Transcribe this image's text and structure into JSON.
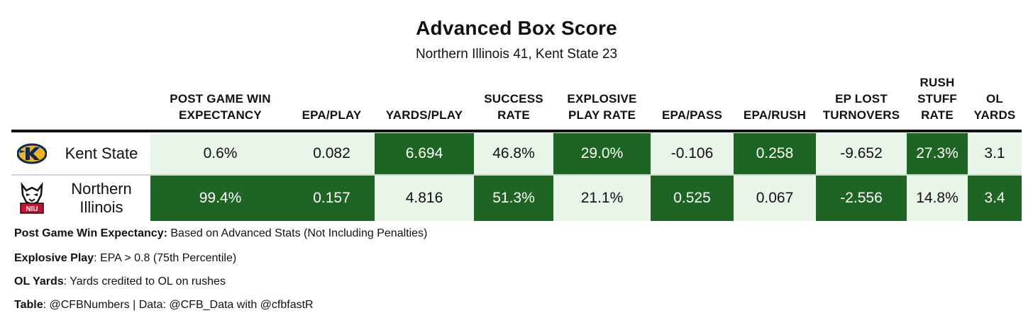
{
  "title": "Advanced Box Score",
  "subtitle": "Northern Illinois 41, Kent State 23",
  "colors": {
    "light": "#e8f5e8",
    "dark": "#1e6422"
  },
  "chart_data": {
    "type": "table",
    "columns": [
      {
        "key": "wp",
        "label_lines": [
          "POST GAME WIN",
          "EXPECTANCY"
        ]
      },
      {
        "key": "epa_play",
        "label_lines": [
          "EPA/PLAY"
        ]
      },
      {
        "key": "yards_play",
        "label_lines": [
          "YARDS/PLAY"
        ]
      },
      {
        "key": "success",
        "label_lines": [
          "SUCCESS",
          "RATE"
        ]
      },
      {
        "key": "explosive",
        "label_lines": [
          "EXPLOSIVE",
          "PLAY RATE"
        ]
      },
      {
        "key": "epa_pass",
        "label_lines": [
          "EPA/PASS"
        ]
      },
      {
        "key": "epa_rush",
        "label_lines": [
          "EPA/RUSH"
        ]
      },
      {
        "key": "ep_lost",
        "label_lines": [
          "EP LOST",
          "TURNOVERS"
        ]
      },
      {
        "key": "stuff",
        "label_lines": [
          "RUSH",
          "STUFF",
          "RATE"
        ]
      },
      {
        "key": "ol_yards",
        "label_lines": [
          "OL",
          "YARDS"
        ]
      }
    ],
    "rows": [
      {
        "team_lines": [
          "Kent State"
        ],
        "logo": "kent-state-golden-flash-logo-icon",
        "values": [
          "0.6%",
          "0.082",
          "6.694",
          "46.8%",
          "29.0%",
          "-0.106",
          "0.258",
          "-9.652",
          "27.3%",
          "3.1"
        ],
        "shades": [
          "light",
          "light",
          "dark",
          "light",
          "dark",
          "light",
          "dark",
          "light",
          "dark",
          "light"
        ]
      },
      {
        "team_lines": [
          "Northern",
          "Illinois"
        ],
        "logo": "niu-huskie-logo-icon",
        "values": [
          "99.4%",
          "0.157",
          "4.816",
          "51.3%",
          "21.1%",
          "0.525",
          "0.067",
          "-2.556",
          "14.8%",
          "3.4"
        ],
        "shades": [
          "dark",
          "dark",
          "light",
          "dark",
          "light",
          "dark",
          "light",
          "dark",
          "light",
          "dark"
        ]
      }
    ]
  },
  "footnotes": [
    {
      "label": "Post Game Win Expectancy:",
      "text": " Based on Advanced Stats (Not Including Penalties)"
    },
    {
      "label": "Explosive Play",
      "text": ": EPA > 0.8 (75th Percentile)"
    },
    {
      "label": "OL Yards",
      "text": ": Yards credited to OL on rushes"
    },
    {
      "label": "Table",
      "text": ": @CFBNumbers | Data: @CFB_Data with @cfbfastR"
    }
  ]
}
